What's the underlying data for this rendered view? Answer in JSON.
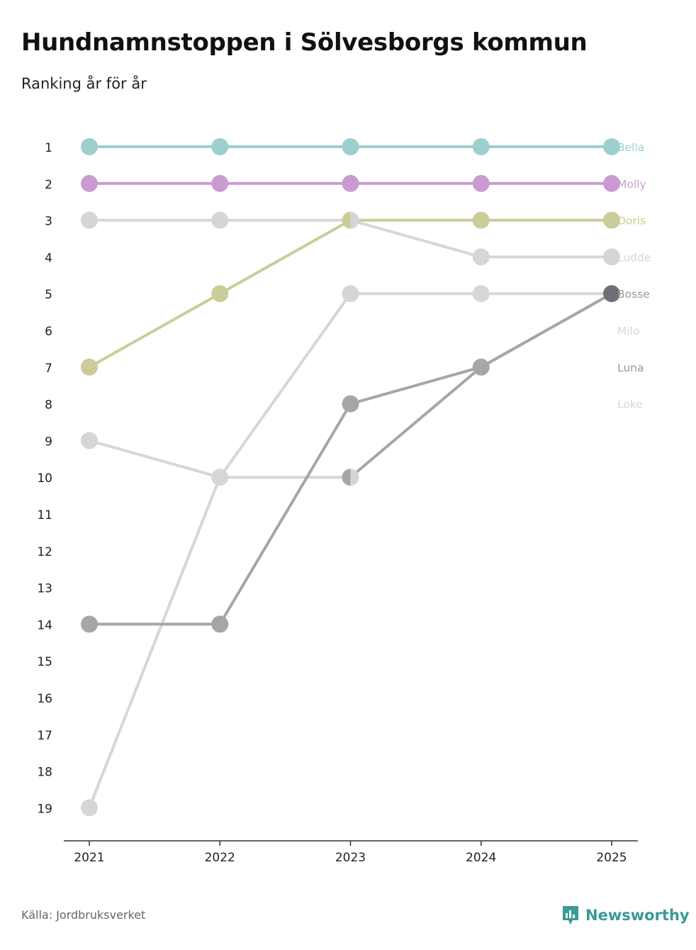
{
  "title": "Hundnamnstoppen i Sölvesborgs kommun",
  "subtitle": "Ranking år för år",
  "source": "Källa: Jordbruksverket",
  "brand": {
    "name": "Newsworthy",
    "icon": "newsworthy-logo-icon",
    "color": "#3a9a97"
  },
  "chart_data": {
    "type": "line",
    "title": "Hundnamnstoppen i Sölvesborgs kommun",
    "subtitle": "Ranking år för år",
    "x": [
      "2021",
      "2022",
      "2023",
      "2024",
      "2025"
    ],
    "y_ticks": [
      "1",
      "2",
      "3",
      "4",
      "5",
      "6",
      "7",
      "8",
      "9",
      "10",
      "11",
      "12",
      "13",
      "14",
      "15",
      "16",
      "17",
      "18",
      "19"
    ],
    "ylim": [
      1,
      19
    ],
    "y_inverted": true,
    "grid": false,
    "legend": "direct labels at right",
    "series": [
      {
        "name": "Bella",
        "color": "#9ccfce",
        "label_color": "#9ccfce",
        "values": [
          1,
          1,
          1,
          1,
          1
        ]
      },
      {
        "name": "Molly",
        "color": "#c99bd0",
        "label_color": "#c99bd0",
        "values": [
          2,
          2,
          2,
          2,
          2
        ]
      },
      {
        "name": "Doris",
        "color": "#cccc99",
        "label_color": "#cccc99",
        "values": [
          7,
          5,
          3,
          3,
          3
        ]
      },
      {
        "name": "Ludde",
        "color": "#d6d6d6",
        "label_color": "#d6d6d6",
        "values": [
          3,
          3,
          3,
          4,
          4
        ]
      },
      {
        "name": "Bosse",
        "color": "#a6a6a6",
        "label_color": "#999999",
        "values": [
          14,
          14,
          8,
          7,
          5
        ]
      },
      {
        "name": "Milo",
        "color": "#d6d6d6",
        "label_color": "#d6d6d6",
        "values": [
          19,
          10,
          5,
          5,
          5
        ]
      },
      {
        "name": "Luna",
        "color": "#a6a6a6",
        "label_color": "#999999",
        "values": [
          null,
          null,
          10,
          7,
          5
        ]
      },
      {
        "name": "Loke",
        "color": "#d6d6d6",
        "label_color": "#d6d6d6",
        "values": [
          9,
          10,
          10,
          null,
          null
        ]
      }
    ],
    "overlap_color": "#6e6e76"
  }
}
